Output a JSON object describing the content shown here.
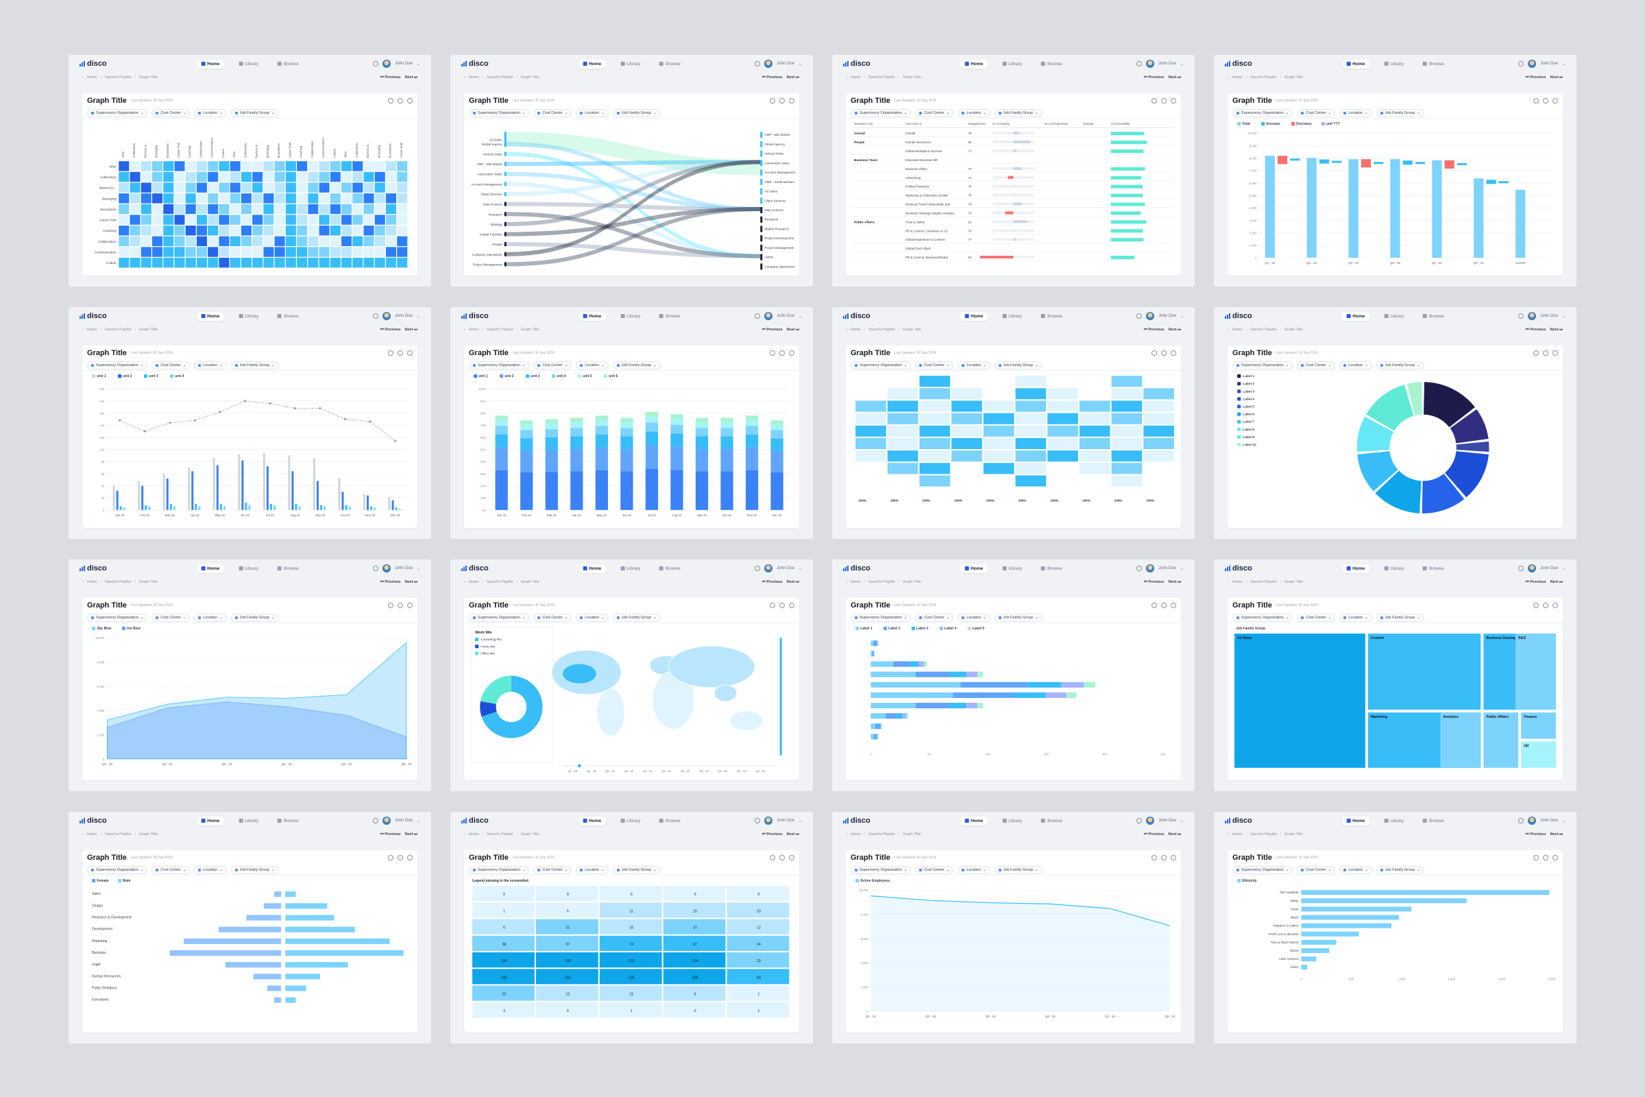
{
  "app": {
    "brand": "disco",
    "nav": [
      {
        "label": "Home",
        "active": true
      },
      {
        "label": "Library",
        "active": false
      },
      {
        "label": "Browse",
        "active": false
      }
    ],
    "user": "John Doe",
    "breadcrumb": [
      "Home",
      "Saved's Playlist",
      "Graph Title"
    ],
    "prev_label": "Previous",
    "next_label": "Next"
  },
  "card": {
    "title": "Graph Title",
    "subtitle": "Last Updated: 30 Sep 2024"
  },
  "filters": [
    "Supervisory Organization",
    "Cost Center",
    "Location",
    "Job Family Group"
  ],
  "colors": {
    "accent": "#2563eb",
    "light": "#7dd3fc",
    "cyan": "#38bdf8",
    "pale": "#cdefff",
    "navy": "#1e1b4b",
    "bg": "#dcdde3"
  },
  "panels": [
    {
      "chart_data": {
        "type": "heatmap",
        "rows": [
          "Alfan",
          "Authenticity",
          "Barriers to...",
          "Belonging",
          "Boundaries",
          "Career Path",
          "Coaching",
          "Collaboration",
          "Communication",
          "Culture"
        ]
      }
    },
    {
      "chart_data": {
        "type": "sankey",
        "left": [
          "Ad Sales",
          "Global Agency",
          "Vertical Sales",
          "AMP - Mid Market",
          "Automotive Sales",
          "Account Management",
          "Client Services",
          "Data Science",
          "Research",
          "Strategy",
          "Global Facilities",
          "People",
          "Company Operations",
          "Project Management"
        ],
        "right": [
          "AMP - Mid Market",
          "Global Agency",
          "Vertical Sales",
          "Automotive Sales",
          "Account Management",
          "SMB - Small Medium",
          "Ad Sales",
          "Client Services",
          "Data Science",
          "Research",
          "Market Research",
          "Project Development",
          "Project Management",
          "Admin",
          "Company Operations"
        ]
      }
    },
    {
      "chart_data": {
        "type": "table",
        "columns": [
          "Business Unit",
          "Org Level 4",
          "Engagement",
          "vs Company",
          "No of Responses",
          "Change",
          "% Favorability"
        ],
        "groups": [
          "Overall",
          "People",
          "Business Team",
          "Public Affairs"
        ],
        "rows": [
          "Overall",
          "Human Resources",
          "Global Workplace Services",
          "Education Mountain 8th",
          "Business Affairs",
          "Advertising",
          "Political Business",
          "Marketing & Subscriber Growth",
          "Business Team Partnerships and",
          "Business Strategy Insights Analytics",
          "Trust & Safety",
          "PR & Comms, Consumer & CS",
          "Global Experience & Content",
          "Global Govt Affairs",
          "PR & Comms, Business/Global"
        ],
        "engagement": [
          78,
          82,
          77,
          null,
          79,
          74,
          76,
          76,
          79,
          73,
          81,
          76,
          77,
          null,
          64
        ]
      }
    },
    {
      "chart_data": {
        "type": "bar",
        "legend": [
          "Total",
          "Increase",
          "Decrease",
          "unit ???"
        ],
        "categories": [
          "Q1 - 23",
          "Q2 - 23",
          "Q3 - 23",
          "Q4 - 23",
          "Q1 - 24",
          "Q2 - 24",
          "Current"
        ],
        "values": [
          9000,
          8800,
          8700,
          8700,
          8600,
          7000,
          6000
        ],
        "ylim": [
          0,
          11000
        ]
      }
    },
    {
      "chart_data": {
        "type": "bar",
        "legend": [
          "unit 1",
          "unit 2",
          "unit 3",
          "unit 4"
        ],
        "categories": [
          "Jan 22",
          "Feb 22",
          "Mar 22",
          "Apr 22",
          "May 22",
          "Jun 22",
          "Jul 22",
          "Aug 22",
          "Sep 22",
          "Oct 22",
          "Nov 22",
          "Dec 22"
        ],
        "series": [
          {
            "name": "unit 1",
            "values": [
              40,
              48,
              60,
              70,
              86,
              92,
              94,
              90,
              86,
              52,
              26,
              22
            ]
          },
          {
            "name": "unit 2",
            "values": [
              32,
              40,
              52,
              64,
              74,
              82,
              72,
              64,
              48,
              30,
              24,
              16
            ]
          },
          {
            "name": "unit 3",
            "values": [
              6,
              8,
              10,
              10,
              10,
              12,
              10,
              10,
              8,
              8,
              6,
              4
            ]
          },
          {
            "name": "unit 4",
            "values": [
              4,
              6,
              6,
              6,
              6,
              8,
              8,
              6,
              6,
              6,
              4,
              2
            ]
          }
        ],
        "line": [
          148,
          130,
          144,
          148,
          162,
          180,
          176,
          168,
          168,
          150,
          146,
          114
        ],
        "ylim": [
          0,
          200
        ]
      }
    },
    {
      "chart_data": {
        "type": "bar",
        "legend": [
          "unit 1",
          "unit 2",
          "unit 3",
          "unit 4",
          "unit 5",
          "unit 6"
        ],
        "categories": [
          "Jan 22",
          "Feb 22",
          "Mar 22",
          "Apr 22",
          "May 22",
          "Jun 22",
          "Jul 22",
          "Aug 22",
          "Sep 22",
          "Oct 22",
          "Nov 22",
          "Dec 22"
        ],
        "totals": [
          78,
          74,
          75,
          76,
          78,
          76,
          81,
          79,
          76,
          76,
          78,
          74
        ],
        "ylim": [
          0,
          100
        ]
      }
    },
    {
      "chart_data": {
        "type": "table",
        "bottom_row": [
          "100%",
          "100%",
          "100%",
          "100%",
          "100%",
          "100%",
          "100%",
          "100%",
          "100%",
          "100%"
        ]
      }
    },
    {
      "chart_data": {
        "type": "pie",
        "labels": [
          "Label 1",
          "Label 2",
          "Label 3",
          "Label 4",
          "Label 5",
          "Label 6",
          "Label 7",
          "Label 8",
          "Label 9",
          "Label 10"
        ],
        "values": [
          14,
          8,
          3,
          12,
          11,
          12,
          10,
          9,
          12,
          4
        ],
        "colors": [
          "#1e1b4b",
          "#312e81",
          "#3a4aa8",
          "#1d4ed8",
          "#2563eb",
          "#0ea5e9",
          "#38bdf8",
          "#67e8f9",
          "#5eead4",
          "#a7f3d0"
        ]
      }
    },
    {
      "chart_data": {
        "type": "area",
        "legend": [
          "Sky Blue",
          "Iris Blue"
        ],
        "categories": [
          "Q2 - 23",
          "Q3 - 23",
          "Q4 - 23",
          "Q1 - 24",
          "Q2 - 24",
          "Q3 - 24"
        ],
        "series": [
          {
            "name": "Sky Blue",
            "values": [
              3200,
              4500,
              5100,
              5000,
              5300,
              9600
            ]
          },
          {
            "name": "Iris Blue",
            "values": [
              2600,
              4200,
              4700,
              4300,
              3600,
              1800
            ]
          }
        ],
        "ylim": [
          0,
          10000
        ]
      }
    },
    {
      "chart_data": {
        "type": "pie",
        "panel_title": "Work Mix",
        "labels": [
          "Coworking Mix",
          "Home Mix",
          "Office Mix"
        ],
        "values": [
          70,
          8,
          22
        ],
        "colors": [
          "#38bdf8",
          "#1d4ed8",
          "#5eead4"
        ],
        "timeline": [
          "Q1 - 18",
          "Q2 - 18",
          "Q3 - 19",
          "Q4 - 20",
          "Q1 - 21",
          "Q2 - 21",
          "Q3 - 22",
          "Q4 - 22",
          "Q1 - 23",
          "Q2 - 23",
          "Q3 - 24"
        ]
      }
    },
    {
      "chart_data": {
        "type": "bar",
        "legend": [
          "Label 1",
          "Label 2",
          "Label 3",
          "Label 4",
          "Label 5"
        ],
        "xlim": [
          0,
          250
        ]
      }
    },
    {
      "chart_data": {
        "type": "treemap",
        "header": "Job Family Group",
        "tiles": [
          "Ad Sales",
          "Content",
          "Business Development",
          "R&D",
          "Marketing",
          "Analytics",
          "Public Affairs",
          "Finance",
          "HR"
        ]
      }
    },
    {
      "chart_data": {
        "type": "bar",
        "legend": [
          "Female",
          "Male"
        ],
        "categories": [
          "Sales",
          "Design",
          "Research & Development",
          "Development",
          "Marketing",
          "Business",
          "Legal",
          "Human Resources",
          "Public Relations",
          "Executives"
        ],
        "series": [
          {
            "name": "Female",
            "values": [
              2,
              5,
              10,
              18,
              28,
              32,
              16,
              8,
              4,
              2
            ]
          },
          {
            "name": "Male",
            "values": [
              3,
              12,
              14,
              20,
              30,
              34,
              18,
              10,
              6,
              3
            ]
          }
        ]
      }
    },
    {
      "chart_data": {
        "type": "heatmap",
        "title": "Legend missing in the screenshot",
        "values": [
          [
            0,
            0,
            0,
            0,
            0
          ],
          [
            1,
            5,
            11,
            15,
            10
          ],
          [
            6,
            21,
            16,
            37,
            12
          ],
          [
            39,
            37,
            74,
            67,
            24
          ],
          [
            115,
            120,
            123,
            124,
            33
          ],
          [
            106,
            101,
            125,
            108,
            60
          ],
          [
            22,
            13,
            15,
            6,
            1
          ],
          [
            3,
            0,
            1,
            0,
            1
          ]
        ]
      }
    },
    {
      "chart_data": {
        "type": "line",
        "legend": [
          "Active Employees"
        ],
        "categories": [
          "Q1 - 22",
          "Q2 - 23",
          "Q3 - 23",
          "Q4 - 23",
          "Q1 - 24",
          "Q2 - 24"
        ],
        "values": [
          10000,
          9600,
          9400,
          9300,
          8900,
          7400
        ],
        "ylim": [
          0,
          10500
        ]
      }
    },
    {
      "chart_data": {
        "type": "bar",
        "legend": [
          "Ethnicity"
        ],
        "categories": [
          "Not Available",
          "White",
          "Asian",
          "Black",
          "Hispanic or Latino",
          "Prefer not to disclose",
          "Two or More Raced",
          "Mixed",
          "Latin America",
          "Other"
        ],
        "values": [
          4950,
          3300,
          2200,
          1950,
          1800,
          1150,
          700,
          560,
          300,
          120
        ],
        "xlim": [
          0,
          5000
        ],
        "xticks": [
          "0",
          "500",
          "1,000",
          "1,500",
          "2,000",
          "5,000"
        ]
      }
    }
  ]
}
